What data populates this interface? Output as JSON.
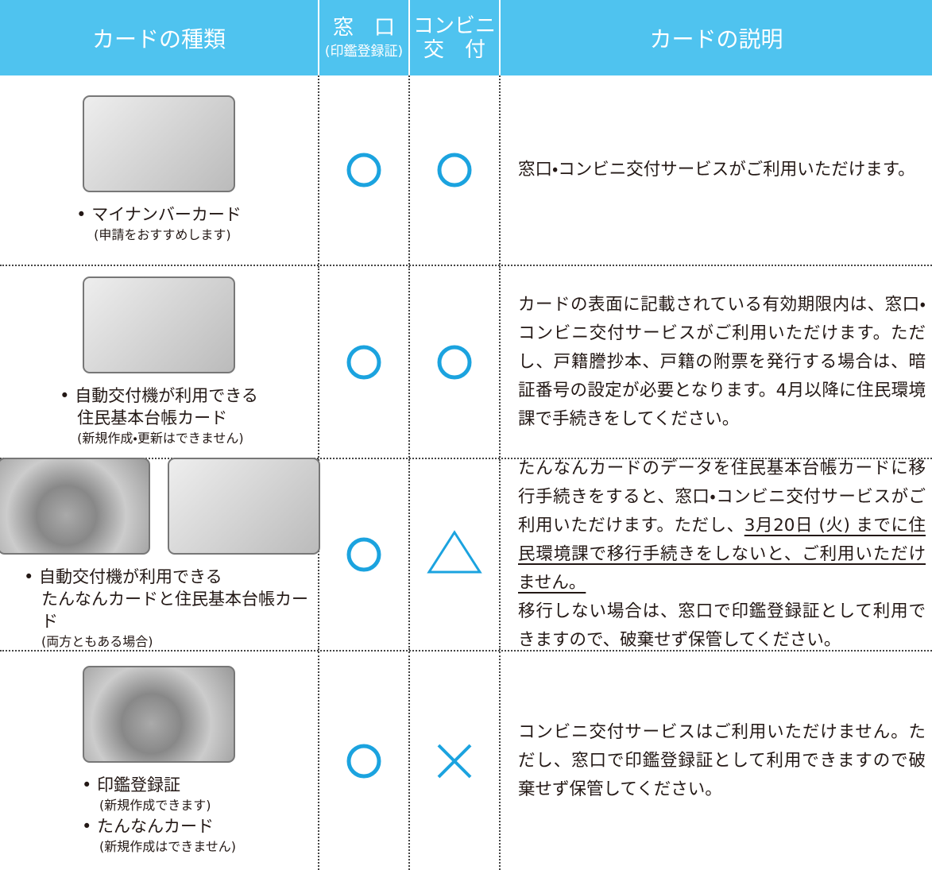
{
  "header": {
    "columns": [
      {
        "lines": [
          "カードの種類"
        ]
      },
      {
        "lines": [
          "窓　口",
          "(印鑑登録証)"
        ]
      },
      {
        "lines": [
          "コンビニ",
          "交　付"
        ]
      },
      {
        "lines": [
          "カードの説明"
        ]
      }
    ]
  },
  "rows": [
    {
      "items": [
        {
          "lines": [
            "• マイナンバーカード"
          ],
          "note": "(申請をおすすめします)"
        }
      ],
      "window": "○",
      "convenience": "○",
      "description": [
        {
          "text": "窓口・コンビニ交付サービスがご利用いただけます。"
        }
      ]
    },
    {
      "items": [
        {
          "lines": [
            "• 自動交付機が利用できる",
            "住民基本台帳カード"
          ],
          "note": "(新規作成・更新はできません)"
        }
      ],
      "window": "○",
      "convenience": "○",
      "description": [
        {
          "text": "カードの表面に記載されている有効期限内は、窓口・コンビニ交付サービスがご利用いただけます。ただし、戸籍謄抄本、戸籍の附票を発行する場合は、暗証番号の設定が必要となります。4月以降に住民環境課で手続きをしてください。"
        }
      ]
    },
    {
      "items": [
        {
          "lines": [
            "• 自動交付機が利用できる",
            "たんなんカードと住民基本台帳カード"
          ],
          "note": "(両方ともある場合)"
        }
      ],
      "window": "○",
      "convenience": "△",
      "description": [
        {
          "text": "たんなんカードのデータを住民基本台帳カードに移行手続きをすると、窓口・コンビニ交付サービスがご利用いただけます。ただし、"
        },
        {
          "text": "3月20日 (火) までに住民環境課で移行手続きをしないと、ご利用いただけません。",
          "underline": true
        },
        {
          "text": "移行しない場合は、窓口で印鑑登録証として利用できますので、破棄せず保管してください。",
          "break": true
        }
      ]
    },
    {
      "items": [
        {
          "lines": [
            "• 印鑑登録証"
          ],
          "note": "(新規作成できます)"
        },
        {
          "lines": [
            "• たんなんカード"
          ],
          "note": "(新規作成はできません)"
        }
      ],
      "window": "○",
      "convenience": "×",
      "description": [
        {
          "text": "コンビニ交付サービスはご利用いただけません。ただし、窓口で印鑑登録証として利用できますので破棄せず保管してください。"
        }
      ]
    }
  ]
}
